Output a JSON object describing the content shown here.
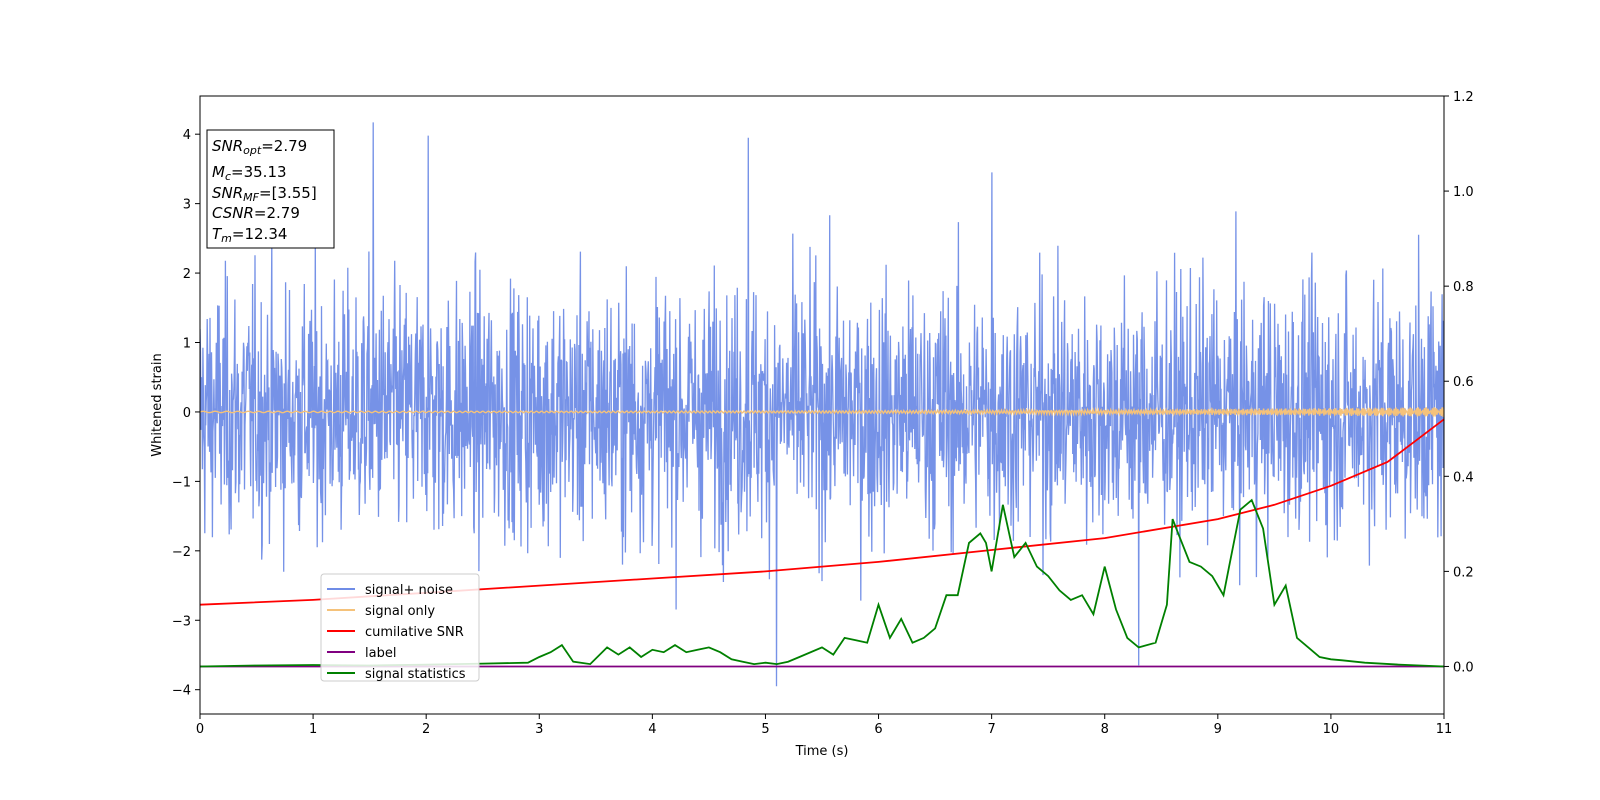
{
  "chart_data": {
    "type": "line",
    "xlabel": "Time (s)",
    "ylabel": "Whitened strain",
    "xlim": [
      0,
      11
    ],
    "ylim_left": [
      -4.35,
      4.55
    ],
    "ylim_right": [
      -0.1,
      1.2
    ],
    "x_ticks": [
      "0",
      "1",
      "2",
      "3",
      "4",
      "5",
      "6",
      "7",
      "8",
      "9",
      "10",
      "11"
    ],
    "y_left_ticks": [
      "4",
      "3",
      "2",
      "1",
      "0",
      "−1",
      "−2",
      "−3",
      "−4"
    ],
    "y_right_ticks": [
      "1.2",
      "1.0",
      "0.8",
      "0.6",
      "0.4",
      "0.2",
      "0.0"
    ],
    "grid": false,
    "legend_position": "lower-left",
    "info_box": {
      "snr_opt": {
        "label": "SNR",
        "sub": "opt",
        "value": "=2.79"
      },
      "mc": {
        "label": "M",
        "sub": "c",
        "value": "=35.13"
      },
      "snr_mf": {
        "label": "SNR",
        "sub": "MF",
        "value": "=[3.55]"
      },
      "csnr": {
        "label": "CSNR",
        "value": "=2.79"
      },
      "tm": {
        "label": "T",
        "sub": "m",
        "value": "=12.34"
      }
    },
    "series": [
      {
        "name": "signal+ noise",
        "color": "#6f8ce6",
        "axis": "left",
        "description_points": {
          "x": [
            0,
            11
          ],
          "y_band": [
            -2.3,
            2.3
          ],
          "peaks": [
            [
              1.53,
              4.17
            ],
            [
              2.02,
              3.98
            ],
            [
              4.85,
              3.95
            ],
            [
              5.1,
              -3.95
            ],
            [
              8.3,
              -3.65
            ],
            [
              7.0,
              3.45
            ]
          ]
        }
      },
      {
        "name": "signal only",
        "color": "#f5c27a",
        "axis": "left",
        "x": [
          0,
          11
        ],
        "amplitude": [
          0.01,
          0.07
        ]
      },
      {
        "name": "cumilative SNR",
        "color": "#ff0000",
        "axis": "right",
        "x": [
          0,
          1,
          2,
          3,
          4,
          5,
          6,
          7,
          8,
          9,
          9.5,
          10,
          10.5,
          11
        ],
        "y": [
          0.13,
          0.14,
          0.155,
          0.17,
          0.185,
          0.2,
          0.22,
          0.245,
          0.27,
          0.31,
          0.34,
          0.38,
          0.43,
          0.52
        ]
      },
      {
        "name": "label",
        "color": "#800080",
        "axis": "right",
        "x": [
          0,
          11
        ],
        "y": [
          0,
          0
        ]
      },
      {
        "name": "signal statistics",
        "color": "#008000",
        "axis": "right",
        "x": [
          0,
          0.5,
          1,
          1.5,
          2,
          2.5,
          2.9,
          3.0,
          3.1,
          3.2,
          3.3,
          3.45,
          3.6,
          3.7,
          3.8,
          3.9,
          4.0,
          4.1,
          4.2,
          4.3,
          4.4,
          4.5,
          4.6,
          4.7,
          4.8,
          4.9,
          5.0,
          5.1,
          5.2,
          5.3,
          5.5,
          5.6,
          5.7,
          5.8,
          5.9,
          6.0,
          6.1,
          6.2,
          6.3,
          6.4,
          6.5,
          6.6,
          6.7,
          6.8,
          6.9,
          6.95,
          7.0,
          7.1,
          7.2,
          7.3,
          7.4,
          7.5,
          7.6,
          7.7,
          7.8,
          7.9,
          8.0,
          8.1,
          8.2,
          8.3,
          8.45,
          8.55,
          8.6,
          8.65,
          8.75,
          8.85,
          8.95,
          9.05,
          9.1,
          9.2,
          9.3,
          9.4,
          9.5,
          9.6,
          9.7,
          9.8,
          9.9,
          10.0,
          10.1,
          10.3,
          10.6,
          11.0
        ],
        "y": [
          0.0,
          0.002,
          0.003,
          0.002,
          0.004,
          0.006,
          0.008,
          0.02,
          0.03,
          0.045,
          0.01,
          0.005,
          0.04,
          0.025,
          0.04,
          0.02,
          0.035,
          0.03,
          0.045,
          0.03,
          0.035,
          0.04,
          0.03,
          0.015,
          0.01,
          0.005,
          0.008,
          0.005,
          0.01,
          0.02,
          0.04,
          0.025,
          0.06,
          0.055,
          0.05,
          0.13,
          0.06,
          0.1,
          0.05,
          0.06,
          0.08,
          0.15,
          0.15,
          0.26,
          0.28,
          0.26,
          0.2,
          0.34,
          0.23,
          0.26,
          0.21,
          0.19,
          0.16,
          0.14,
          0.15,
          0.11,
          0.21,
          0.12,
          0.06,
          0.04,
          0.05,
          0.13,
          0.31,
          0.28,
          0.22,
          0.21,
          0.19,
          0.15,
          0.21,
          0.33,
          0.35,
          0.29,
          0.13,
          0.17,
          0.06,
          0.04,
          0.02,
          0.015,
          0.013,
          0.008,
          0.004,
          0.0
        ]
      }
    ]
  }
}
